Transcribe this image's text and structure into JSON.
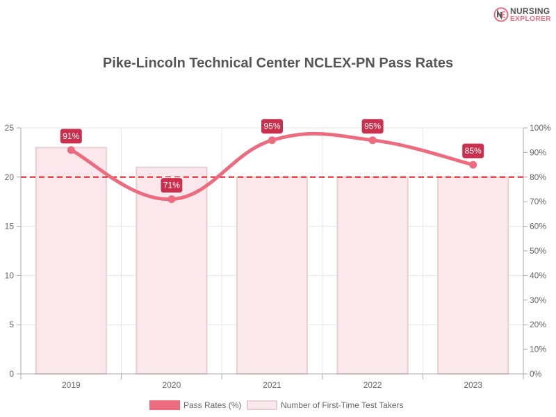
{
  "brand": {
    "line1": "NURSING",
    "line2": "EXPLORER",
    "logo_icon": "nursing-explorer-logo-icon"
  },
  "colors": {
    "line": "#ec6b7f",
    "bar_fill": "#fbe8ec",
    "bar_border": "#e3d0d4",
    "label_bg": "#c9304e",
    "threshold": "#e0222a",
    "grid": "#e6e6e6"
  },
  "chart_data": {
    "type": "bar",
    "title": "Pike-Lincoln Technical Center NCLEX-PN Pass Rates",
    "categories": [
      "2019",
      "2020",
      "2021",
      "2022",
      "2023"
    ],
    "series": [
      {
        "name": "Pass Rates (%)",
        "type": "line",
        "axis": "right",
        "values": [
          91,
          71,
          95,
          95,
          85
        ],
        "labels": [
          "91%",
          "71%",
          "95%",
          "95%",
          "85%"
        ]
      },
      {
        "name": "Number of First-Time Test Takers",
        "type": "bar",
        "axis": "left",
        "values": [
          23,
          21,
          20,
          20,
          20
        ]
      }
    ],
    "y_left": {
      "min": 0,
      "max": 25,
      "ticks": [
        "0",
        "5",
        "10",
        "15",
        "20",
        "25"
      ]
    },
    "y_right": {
      "min": 0,
      "max": 100,
      "ticks": [
        "0%",
        "10%",
        "20%",
        "30%",
        "40%",
        "50%",
        "60%",
        "70%",
        "80%",
        "90%",
        "100%"
      ]
    },
    "threshold": {
      "value": 80,
      "axis": "right",
      "style": "dashed"
    },
    "grid": true,
    "legend_position": "bottom"
  }
}
